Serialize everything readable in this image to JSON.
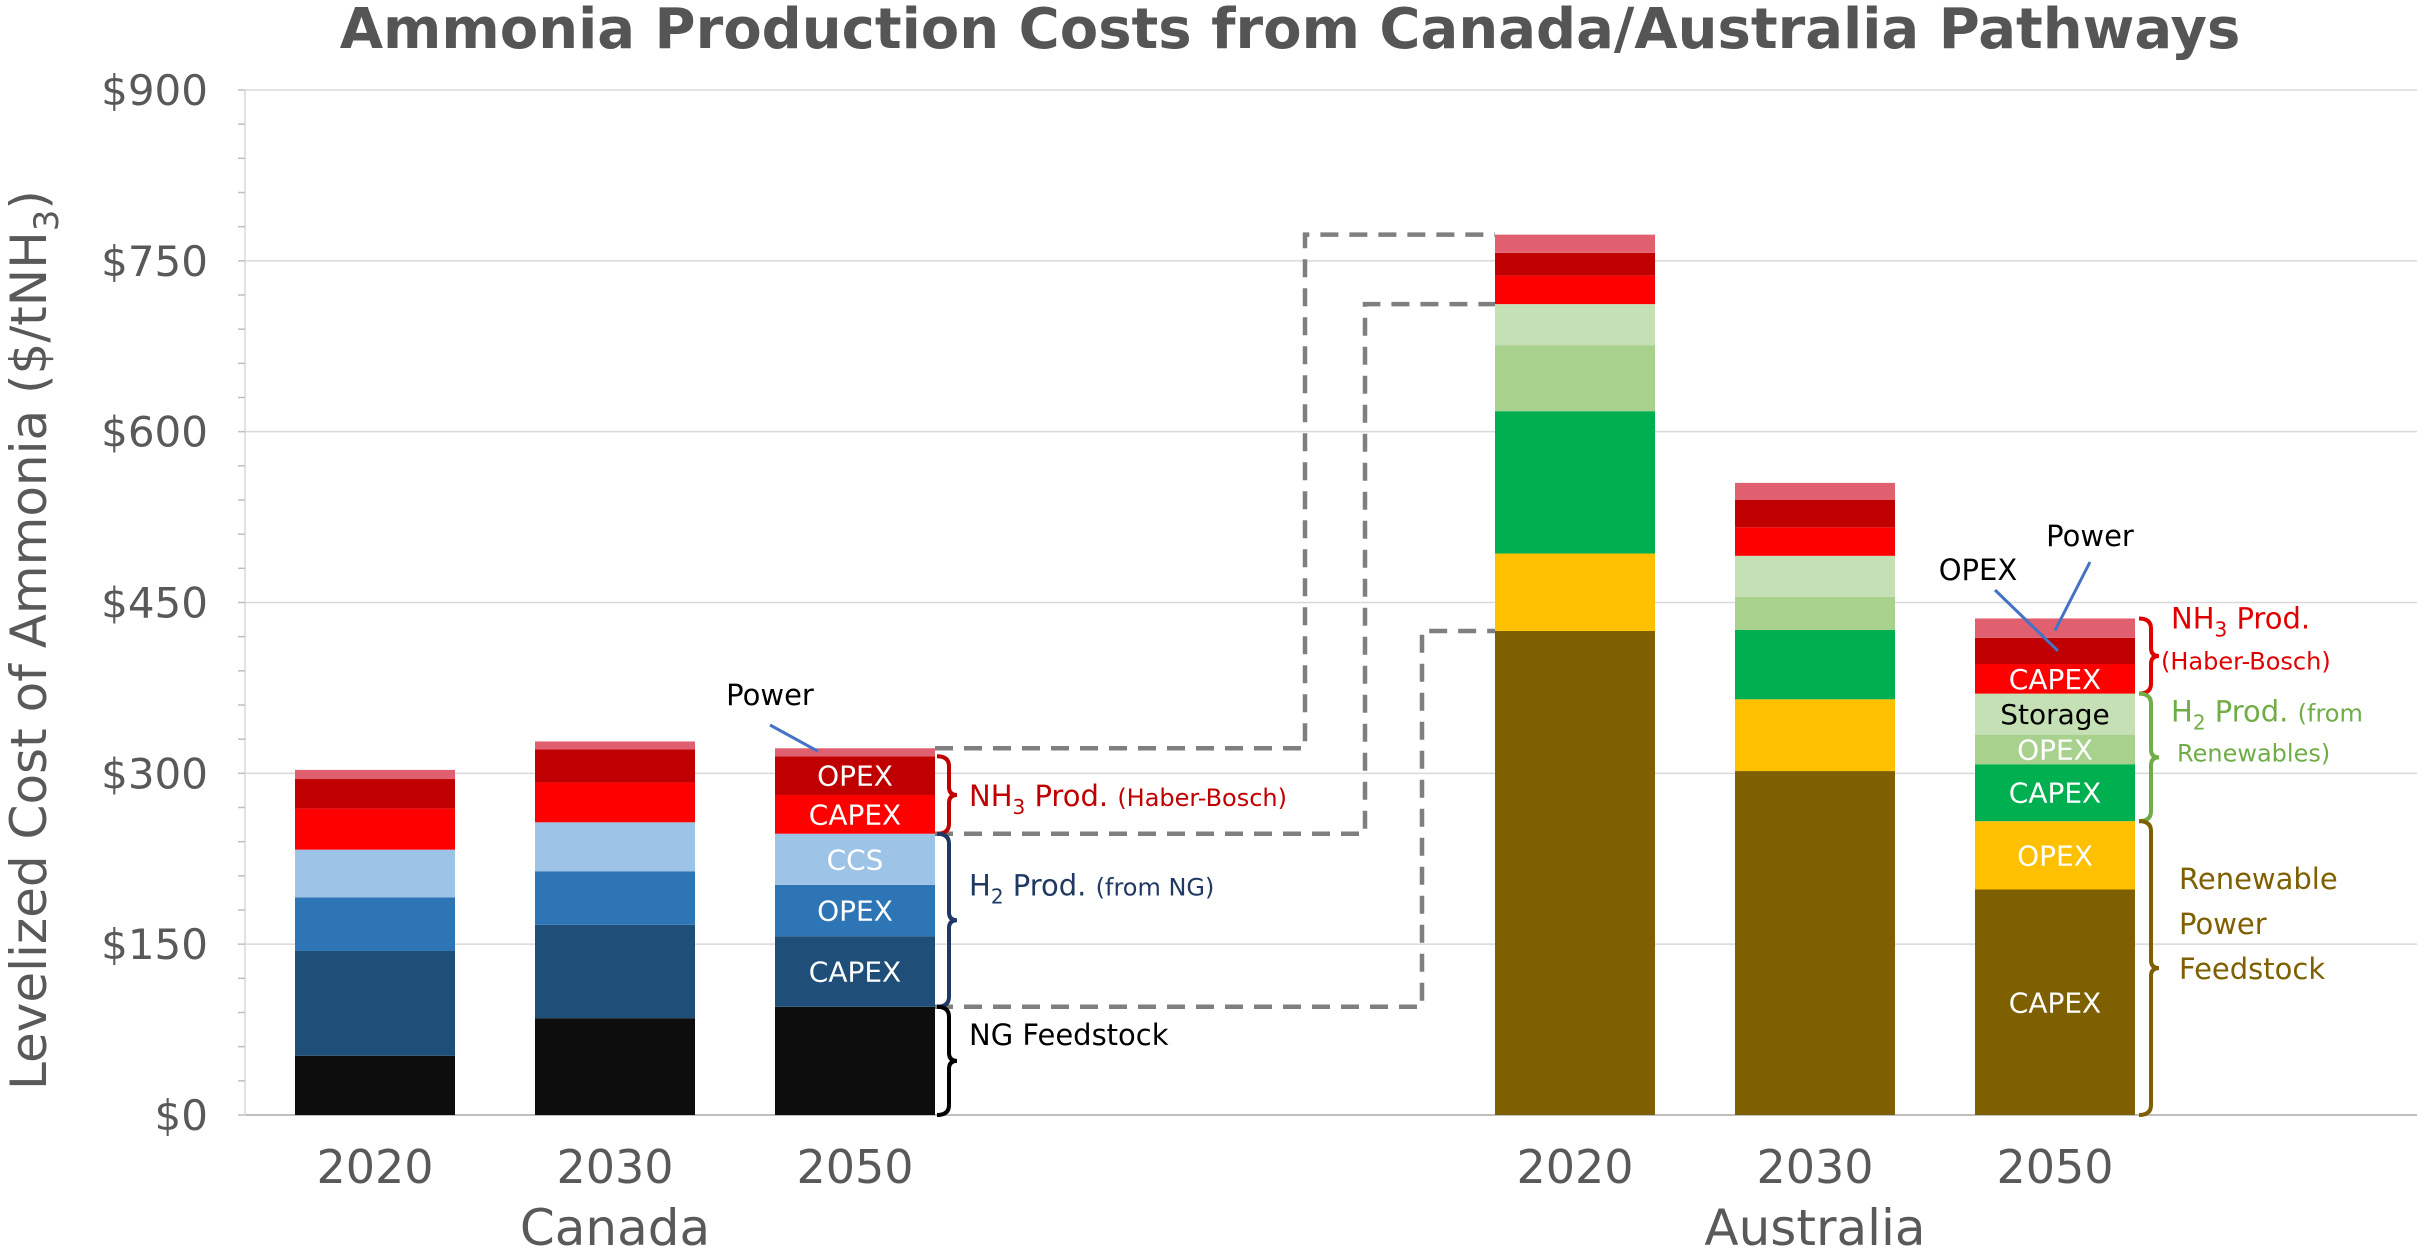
{
  "chart_data": {
    "type": "bar",
    "stacked": true,
    "title": "Ammonia Production Costs from Canada/Australia Pathways",
    "ylabel_main": "Levelized Cost of Ammonia ($/tNH",
    "ylabel_sub": "3",
    "ylabel_close": ")",
    "ylim": [
      0,
      900
    ],
    "yticks": [
      "$0",
      "$150",
      "$300",
      "$450",
      "$600",
      "$750",
      "$900"
    ],
    "ytick_values": [
      0,
      150,
      300,
      450,
      600,
      750,
      900
    ],
    "grid": true,
    "groups": [
      {
        "name": "Canada",
        "bars": [
          {
            "category": "2020",
            "segments": [
              {
                "value": 52,
                "color": "#0d0d0d"
              },
              {
                "value": 92,
                "color": "#1f4e79"
              },
              {
                "value": 47,
                "color": "#2e75b6"
              },
              {
                "value": 42,
                "color": "#9dc3e6"
              },
              {
                "value": 36,
                "color": "#ff0000"
              },
              {
                "value": 26,
                "color": "#c00000"
              },
              {
                "value": 8,
                "color": "#e06070"
              }
            ]
          },
          {
            "category": "2030",
            "segments": [
              {
                "value": 85,
                "color": "#0d0d0d"
              },
              {
                "value": 82,
                "color": "#1f4e79"
              },
              {
                "value": 47,
                "color": "#2e75b6"
              },
              {
                "value": 43,
                "color": "#9dc3e6"
              },
              {
                "value": 35,
                "color": "#ff0000"
              },
              {
                "value": 29,
                "color": "#c00000"
              },
              {
                "value": 7,
                "color": "#e06070"
              }
            ]
          },
          {
            "category": "2050",
            "segments": [
              {
                "value": 95,
                "color": "#0d0d0d",
                "label": ""
              },
              {
                "value": 62,
                "color": "#1f4e79",
                "label": "CAPEX"
              },
              {
                "value": 45,
                "color": "#2e75b6",
                "label": "OPEX"
              },
              {
                "value": 45,
                "color": "#9dc3e6",
                "label": "CCS"
              },
              {
                "value": 34,
                "color": "#ff0000",
                "label": "CAPEX"
              },
              {
                "value": 34,
                "color": "#c00000",
                "label": "OPEX"
              },
              {
                "value": 7,
                "color": "#e06070",
                "label": ""
              }
            ]
          }
        ]
      },
      {
        "name": "Australia",
        "bars": [
          {
            "category": "2020",
            "segments": [
              {
                "value": 425,
                "color": "#7f6000"
              },
              {
                "value": 68,
                "color": "#ffc000"
              },
              {
                "value": 125,
                "color": "#00b050"
              },
              {
                "value": 58,
                "color": "#a9d18e"
              },
              {
                "value": 36,
                "color": "#c5e0b4"
              },
              {
                "value": 25,
                "color": "#ff0000"
              },
              {
                "value": 20,
                "color": "#c00000"
              },
              {
                "value": 16,
                "color": "#e06070"
              }
            ]
          },
          {
            "category": "2030",
            "segments": [
              {
                "value": 302,
                "color": "#7f6000"
              },
              {
                "value": 63,
                "color": "#ffc000"
              },
              {
                "value": 61,
                "color": "#00b050"
              },
              {
                "value": 29,
                "color": "#a9d18e"
              },
              {
                "value": 36,
                "color": "#c5e0b4"
              },
              {
                "value": 25,
                "color": "#ff0000"
              },
              {
                "value": 24,
                "color": "#c00000"
              },
              {
                "value": 15,
                "color": "#e06070"
              }
            ]
          },
          {
            "category": "2050",
            "segments": [
              {
                "value": 198,
                "color": "#7f6000",
                "label": "CAPEX",
                "label_color": "#ffffff"
              },
              {
                "value": 60,
                "color": "#ffc000",
                "label": "OPEX",
                "label_color": "#ffffff"
              },
              {
                "value": 50,
                "color": "#00b050",
                "label": "CAPEX",
                "label_color": "#ffffff"
              },
              {
                "value": 26,
                "color": "#a9d18e",
                "label": "OPEX",
                "label_color": "#ffffff"
              },
              {
                "value": 36,
                "color": "#c5e0b4",
                "label": "Storage",
                "label_color": "#000000"
              },
              {
                "value": 26,
                "color": "#ff0000",
                "label": "CAPEX",
                "label_color": "#ffffff"
              },
              {
                "value": 23,
                "color": "#c00000",
                "label": "",
                "label_color": "#ffffff"
              },
              {
                "value": 17,
                "color": "#e06070",
                "label": "",
                "label_color": "#ffffff"
              }
            ]
          }
        ]
      }
    ],
    "annotations": {
      "canada_power": "Power",
      "canada_nh3_prefix": "NH",
      "canada_nh3_sub": "3",
      "canada_nh3_mid": " Prod. ",
      "canada_nh3_small": "(Haber-Bosch)",
      "canada_h2_prefix": "H",
      "canada_h2_sub": "2",
      "canada_h2_mid": " Prod. ",
      "canada_h2_small": "(from NG)",
      "canada_ng": "NG Feedstock",
      "aus_opex": "OPEX",
      "aus_power": "Power",
      "aus_nh3_prefix": "NH",
      "aus_nh3_sub": "3",
      "aus_nh3_mid": " Prod.",
      "aus_nh3_small": "(Haber-Bosch)",
      "aus_h2_prefix": "H",
      "aus_h2_sub": "2",
      "aus_h2_mid": " Prod. ",
      "aus_h2_small1": "(from",
      "aus_h2_small2": "Renewables)",
      "aus_feed_line1": "Renewable",
      "aus_feed_line2": "Power",
      "aus_feed_line3": "Feedstock"
    },
    "colors": {
      "canada_nh3": "#c00000",
      "canada_h2": "#1f3864",
      "canada_ng": "#000000",
      "aus_nh3": "#e00000",
      "aus_h2": "#70ad47",
      "aus_feed": "#7f6000",
      "connector": "#7f7f7f",
      "callout": "#4472c4"
    }
  }
}
